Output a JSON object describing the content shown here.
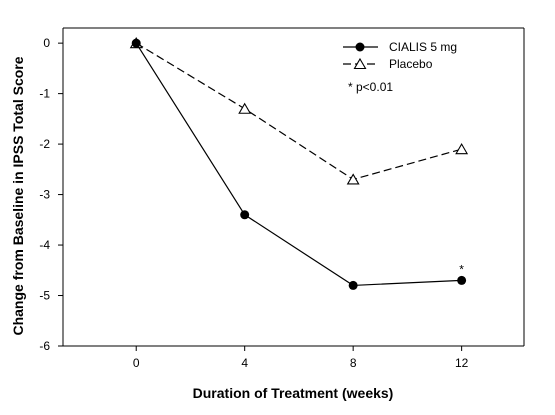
{
  "chart_data": {
    "type": "line",
    "title": "",
    "xlabel": "Duration of Treatment (weeks)",
    "ylabel": "Change from Baseline in IPSS Total Score",
    "x": [
      0,
      4,
      8,
      12
    ],
    "xticks": [
      0,
      4,
      8,
      12
    ],
    "xlim": [
      -2.7,
      14.3
    ],
    "yticks": [
      0,
      -1,
      -2,
      -3,
      -4,
      -5,
      -6
    ],
    "ylim": [
      -6,
      0.3
    ],
    "grid": false,
    "legend_position": "top-right",
    "series": [
      {
        "name": "CIALIS 5 mg",
        "values": [
          0,
          -3.4,
          -4.8,
          -4.7
        ],
        "line_style": "solid",
        "marker": "filled-circle",
        "color": "#000000"
      },
      {
        "name": "Placebo",
        "values": [
          0,
          -1.3,
          -2.7,
          -2.1
        ],
        "line_style": "dashed",
        "marker": "open-triangle",
        "color": "#000000"
      }
    ],
    "annotations": [
      {
        "text": "* p<0.01",
        "placement": "legend"
      },
      {
        "text": "*",
        "series": "CIALIS 5 mg",
        "x": 12
      }
    ]
  }
}
